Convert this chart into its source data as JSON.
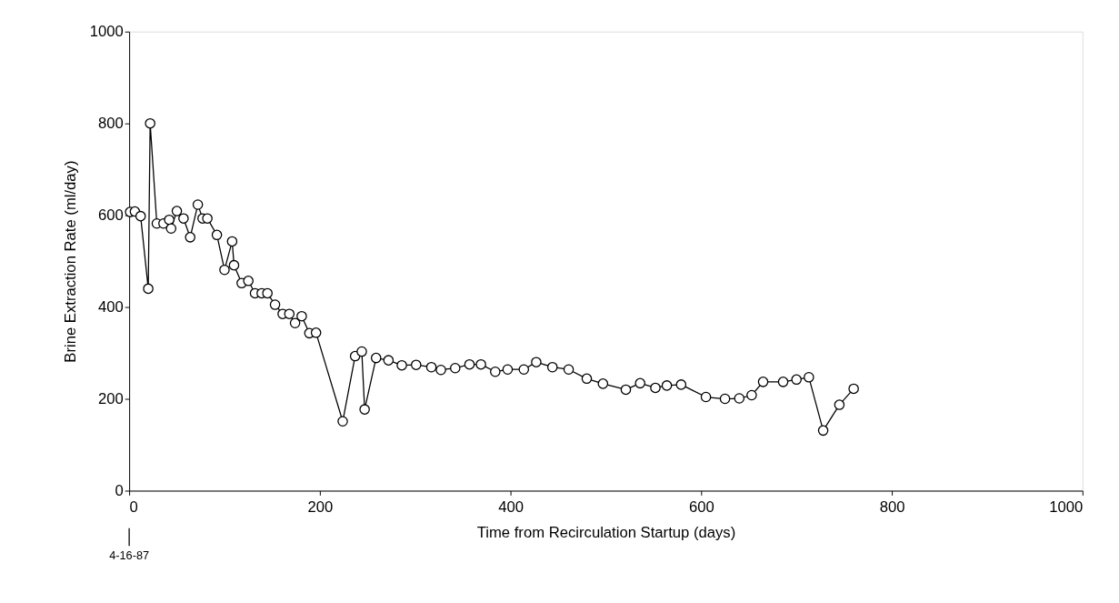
{
  "chart_data": {
    "type": "line",
    "xlabel": "Time from Recirculation Startup  (days)",
    "ylabel": "Brine Extraction Rate (ml/day)",
    "xlim": [
      0,
      1000
    ],
    "ylim": [
      0,
      1000
    ],
    "xticks": [
      0,
      200,
      400,
      600,
      800,
      1000
    ],
    "yticks": [
      0,
      200,
      400,
      600,
      800,
      1000
    ],
    "grid": false,
    "marker": "circle",
    "line_style": "solid",
    "annotations": [
      {
        "text": "4-16-87",
        "x": 0
      }
    ],
    "series": [
      {
        "color": "#000000",
        "x": [
          1,
          6,
          12,
          20,
          22,
          29,
          36,
          42,
          44,
          50,
          57,
          64,
          72,
          77,
          82,
          92,
          100,
          108,
          110,
          118,
          125,
          132,
          139,
          145,
          153,
          161,
          168,
          174,
          181,
          189,
          196,
          224,
          237,
          244,
          247,
          259,
          272,
          286,
          301,
          317,
          327,
          342,
          357,
          369,
          384,
          397,
          414,
          427,
          444,
          461,
          480,
          497,
          521,
          536,
          552,
          564,
          579,
          605,
          625,
          640,
          653,
          665,
          686,
          700,
          713,
          728,
          745,
          760
        ],
        "values": [
          607,
          608,
          598,
          440,
          800,
          582,
          582,
          590,
          571,
          609,
          593,
          552,
          623,
          593,
          593,
          557,
          481,
          543,
          491,
          452,
          457,
          430,
          430,
          430,
          405,
          385,
          385,
          365,
          380,
          343,
          344,
          151,
          293,
          303,
          177,
          289,
          284,
          273,
          274,
          269,
          263,
          267,
          275,
          275,
          259,
          264,
          264,
          280,
          269,
          264,
          244,
          233,
          220,
          234,
          224,
          229,
          231,
          204,
          200,
          201,
          208,
          237,
          237,
          242,
          247,
          131,
          187,
          222
        ]
      }
    ]
  }
}
